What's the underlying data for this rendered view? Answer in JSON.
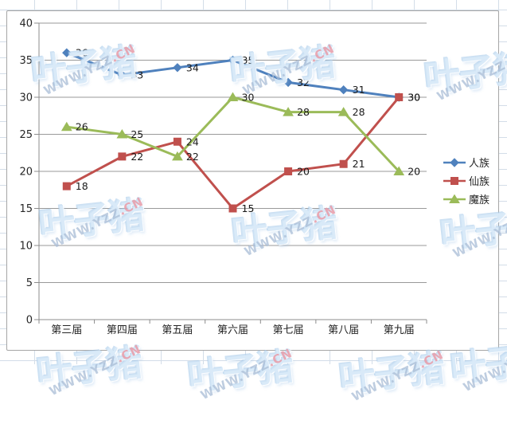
{
  "chart_data": {
    "type": "line",
    "title": "",
    "xlabel": "",
    "ylabel": "",
    "categories": [
      "第三届",
      "第四届",
      "第五届",
      "第六届",
      "第七届",
      "第八届",
      "第九届"
    ],
    "series": [
      {
        "name": "人族",
        "color": "#4F81BD",
        "marker": "diamond",
        "values": [
          36,
          33,
          34,
          35,
          32,
          31,
          30
        ]
      },
      {
        "name": "仙族",
        "color": "#C0504D",
        "marker": "square",
        "values": [
          18,
          22,
          24,
          15,
          20,
          21,
          30
        ]
      },
      {
        "name": "魔族",
        "color": "#9BBB59",
        "marker": "triangle",
        "values": [
          26,
          25,
          22,
          30,
          28,
          28,
          20
        ]
      }
    ],
    "ylim": [
      0,
      40
    ],
    "ytick_step": 5,
    "ytick_labels": [
      "0",
      "5",
      "10",
      "15",
      "20",
      "25",
      "30",
      "35",
      "40"
    ],
    "grid": true,
    "grid_color": "#9a9a9a",
    "axis_color": "#8c8c8c",
    "text_color": "#262626",
    "data_labels": true,
    "legend_position": "right"
  },
  "watermark": {
    "logo": "叶子猪",
    "url_main": "WWW.YZZ",
    "url_cn": ".CN"
  }
}
